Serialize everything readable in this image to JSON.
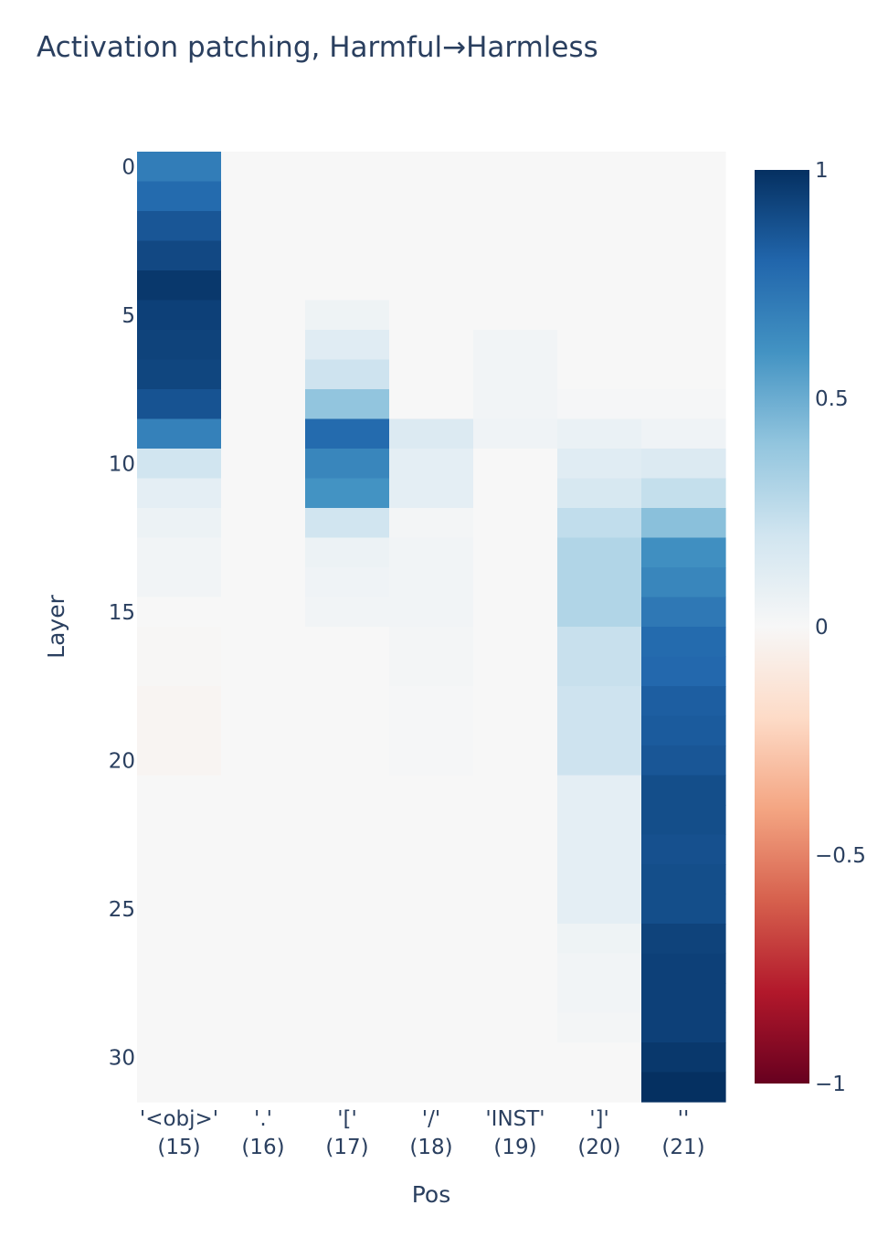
{
  "chart_data": {
    "type": "heatmap",
    "title": "Activation patching, Harmful→Harmless",
    "xlabel": "Pos",
    "ylabel": "Layer",
    "x_categories": [
      [
        "'<obj>'",
        "(15)"
      ],
      [
        "'.'",
        "(16)"
      ],
      [
        "'['",
        "(17)"
      ],
      [
        "'/'",
        "(18)"
      ],
      [
        "'INST'",
        "(19)"
      ],
      [
        "']'",
        "(20)"
      ],
      [
        "''",
        "(21)"
      ]
    ],
    "y_categories": [
      0,
      1,
      2,
      3,
      4,
      5,
      6,
      7,
      8,
      9,
      10,
      11,
      12,
      13,
      14,
      15,
      16,
      17,
      18,
      19,
      20,
      21,
      22,
      23,
      24,
      25,
      26,
      27,
      28,
      29,
      30,
      31
    ],
    "y_tick_values": [
      0,
      5,
      10,
      15,
      20,
      25,
      30
    ],
    "colorbar": {
      "min": -1,
      "max": 1,
      "ticks": [
        1,
        0.5,
        0,
        -0.5,
        -1
      ],
      "tick_labels": [
        "1",
        "0.5",
        "0",
        "−0.5",
        "−1"
      ]
    },
    "colorscale": [
      [
        0.0,
        "#67001f"
      ],
      [
        0.1,
        "#b2182b"
      ],
      [
        0.2,
        "#d6604d"
      ],
      [
        0.3,
        "#f4a582"
      ],
      [
        0.4,
        "#fddbc7"
      ],
      [
        0.5,
        "#f7f7f7"
      ],
      [
        0.6,
        "#d1e5f0"
      ],
      [
        0.7,
        "#92c5de"
      ],
      [
        0.8,
        "#4393c3"
      ],
      [
        0.9,
        "#2166ac"
      ],
      [
        1.0,
        "#053061"
      ]
    ],
    "z": [
      [
        0.7,
        0.0,
        0.0,
        0.0,
        0.0,
        0.0,
        0.0
      ],
      [
        0.78,
        0.0,
        0.0,
        0.0,
        0.0,
        0.0,
        0.0
      ],
      [
        0.86,
        0.0,
        0.0,
        0.0,
        0.0,
        0.0,
        0.0
      ],
      [
        0.91,
        0.0,
        0.0,
        0.0,
        0.0,
        0.0,
        0.0
      ],
      [
        0.97,
        0.0,
        0.0,
        0.0,
        0.0,
        0.0,
        0.0
      ],
      [
        0.94,
        0.0,
        0.05,
        0.0,
        0.0,
        0.0,
        0.0
      ],
      [
        0.93,
        0.0,
        0.12,
        0.0,
        0.03,
        0.0,
        0.0
      ],
      [
        0.92,
        0.0,
        0.21,
        0.0,
        0.03,
        0.0,
        0.0
      ],
      [
        0.87,
        0.0,
        0.4,
        0.0,
        0.03,
        0.01,
        0.01
      ],
      [
        0.68,
        0.0,
        0.78,
        0.14,
        0.04,
        0.07,
        0.04
      ],
      [
        0.2,
        0.0,
        0.66,
        0.1,
        0.0,
        0.12,
        0.14
      ],
      [
        0.1,
        0.0,
        0.6,
        0.1,
        0.0,
        0.17,
        0.24
      ],
      [
        0.06,
        0.0,
        0.2,
        0.02,
        0.0,
        0.25,
        0.42
      ],
      [
        0.03,
        0.0,
        0.06,
        0.03,
        0.0,
        0.3,
        0.62
      ],
      [
        0.03,
        0.0,
        0.04,
        0.03,
        0.0,
        0.3,
        0.66
      ],
      [
        0.0,
        0.0,
        0.03,
        0.03,
        0.0,
        0.3,
        0.72
      ],
      [
        -0.01,
        0.0,
        0.0,
        0.02,
        0.0,
        0.23,
        0.78
      ],
      [
        -0.01,
        0.0,
        0.0,
        0.02,
        0.0,
        0.23,
        0.79
      ],
      [
        -0.02,
        0.0,
        0.0,
        0.01,
        0.0,
        0.21,
        0.83
      ],
      [
        -0.02,
        0.0,
        0.0,
        0.01,
        0.0,
        0.21,
        0.84
      ],
      [
        -0.02,
        0.0,
        0.0,
        0.01,
        0.0,
        0.21,
        0.86
      ],
      [
        0.0,
        0.0,
        0.0,
        0.0,
        0.0,
        0.1,
        0.89
      ],
      [
        0.0,
        0.0,
        0.0,
        0.0,
        0.0,
        0.1,
        0.89
      ],
      [
        0.0,
        0.0,
        0.0,
        0.0,
        0.0,
        0.1,
        0.88
      ],
      [
        0.0,
        0.0,
        0.0,
        0.0,
        0.0,
        0.1,
        0.89
      ],
      [
        0.0,
        0.0,
        0.0,
        0.0,
        0.0,
        0.1,
        0.89
      ],
      [
        0.0,
        0.0,
        0.0,
        0.0,
        0.0,
        0.05,
        0.93
      ],
      [
        0.0,
        0.0,
        0.0,
        0.0,
        0.0,
        0.03,
        0.94
      ],
      [
        0.0,
        0.0,
        0.0,
        0.0,
        0.0,
        0.03,
        0.94
      ],
      [
        0.0,
        0.0,
        0.0,
        0.0,
        0.0,
        0.02,
        0.94
      ],
      [
        0.0,
        0.0,
        0.0,
        0.0,
        0.0,
        0.0,
        0.97
      ],
      [
        0.0,
        0.0,
        0.0,
        0.0,
        0.0,
        0.0,
        1.0
      ]
    ]
  }
}
